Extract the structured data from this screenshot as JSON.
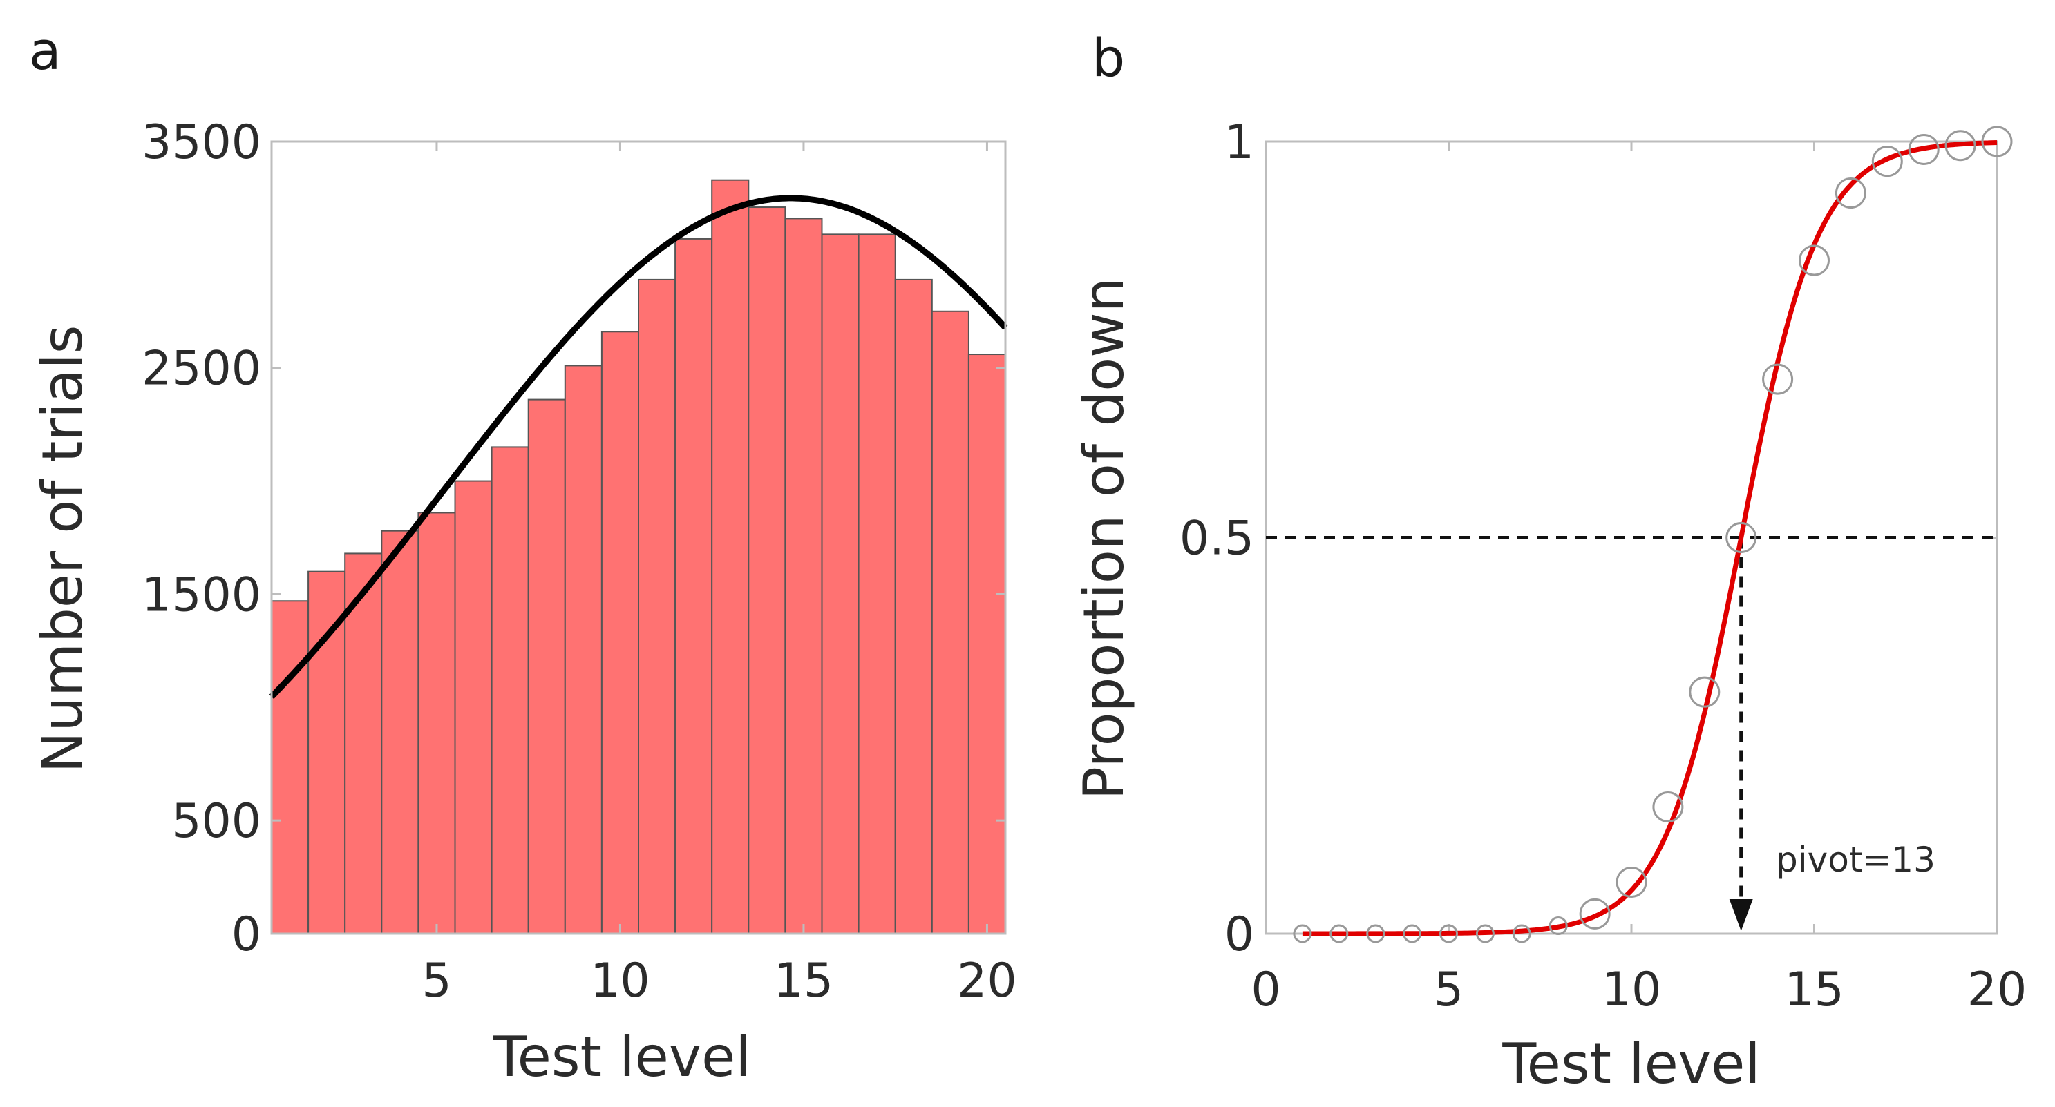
{
  "chart_data": [
    {
      "type": "bar",
      "panel": "a",
      "title": "",
      "xlabel": "Test level",
      "ylabel": "Number of trials",
      "xlim": [
        0.5,
        20.5
      ],
      "ylim": [
        0,
        3500
      ],
      "xticks": [
        5,
        10,
        15,
        20
      ],
      "yticks": [
        0,
        500,
        1500,
        2500,
        3500
      ],
      "xtick_labels": [
        "5",
        "10",
        "15",
        "20"
      ],
      "ytick_labels": [
        "0",
        "500",
        "1500",
        "2500",
        "3500"
      ],
      "categories": [
        1,
        2,
        3,
        4,
        5,
        6,
        7,
        8,
        9,
        10,
        11,
        12,
        13,
        14,
        15,
        16,
        17,
        18,
        19,
        20
      ],
      "values": [
        1470,
        1600,
        1680,
        1780,
        1860,
        2000,
        2150,
        2360,
        2510,
        2660,
        2890,
        3070,
        3330,
        3210,
        3160,
        3090,
        3090,
        2890,
        2750,
        2560
      ],
      "fit_curve": {
        "type": "gaussian",
        "amplitude": 3250,
        "mean": 14.65,
        "sd": 9.4,
        "color": "#000000"
      },
      "bar_color": "#ff7272"
    },
    {
      "type": "line",
      "panel": "b",
      "title": "",
      "xlabel": "Test level",
      "ylabel": "Proportion of down",
      "xlim": [
        0,
        20
      ],
      "ylim": [
        0,
        1
      ],
      "xticks": [
        0,
        5,
        10,
        15,
        20
      ],
      "yticks": [
        0,
        0.5,
        1
      ],
      "xtick_labels": [
        "0",
        "5",
        "10",
        "15",
        "20"
      ],
      "ytick_labels": [
        "0",
        "0.5",
        "1"
      ],
      "x": [
        1,
        2,
        3,
        4,
        5,
        6,
        7,
        8,
        9,
        10,
        11,
        12,
        13,
        14,
        15,
        16,
        17,
        18,
        19,
        20
      ],
      "y": [
        0,
        0,
        0,
        0,
        0,
        0,
        0,
        0.01,
        0.025,
        0.065,
        0.16,
        0.305,
        0.5,
        0.7,
        0.85,
        0.935,
        0.975,
        0.99,
        0.995,
        1.0
      ],
      "fit_curve": {
        "type": "logistic",
        "midpoint": 13,
        "slope": 0.95,
        "color": "#e00000"
      },
      "marker_color": "#999999",
      "reference": {
        "y": 0.5,
        "pivot_x": 13
      },
      "annotation": "pivot=13"
    }
  ]
}
